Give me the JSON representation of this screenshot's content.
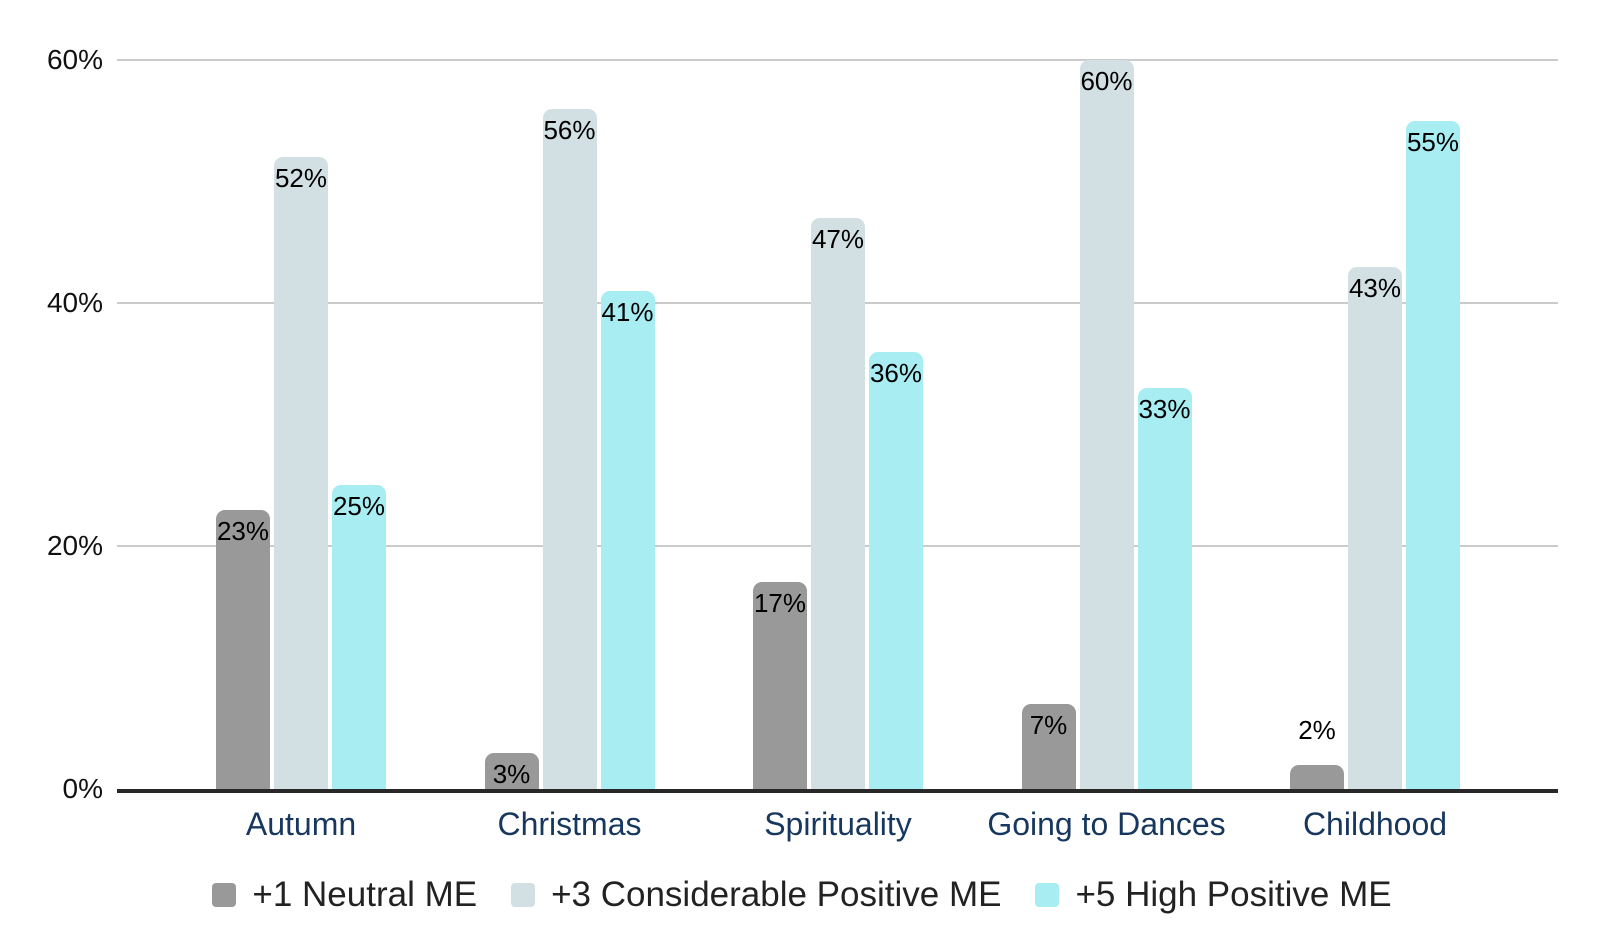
{
  "chart_data": {
    "type": "bar",
    "categories": [
      "Autumn",
      "Christmas",
      "Spirituality",
      "Going to Dances",
      "Childhood"
    ],
    "series": [
      {
        "name": "+1 Neutral ME",
        "color": "#999999",
        "values": [
          23,
          3,
          17,
          7,
          2
        ]
      },
      {
        "name": "+3 Considerable Positive ME",
        "color": "#d3e0e3",
        "values": [
          52,
          56,
          47,
          60,
          43
        ]
      },
      {
        "name": "+5 High Positive ME",
        "color": "#a7edf2",
        "values": [
          25,
          41,
          36,
          33,
          55
        ]
      }
    ],
    "data_labels": [
      [
        "23%",
        "3%",
        "17%",
        "7%",
        "2%"
      ],
      [
        "52%",
        "56%",
        "47%",
        "60%",
        "43%"
      ],
      [
        "25%",
        "41%",
        "36%",
        "33%",
        "55%"
      ]
    ],
    "title": "",
    "xlabel": "",
    "ylabel": "",
    "y_axis": {
      "ticks": [
        "0%",
        "20%",
        "40%",
        "60%"
      ],
      "tick_values": [
        0,
        20,
        40,
        60
      ],
      "max": 60
    },
    "ylim": [
      0,
      60
    ],
    "grid": true,
    "legend_position": "bottom"
  },
  "colors": {
    "background": "#ffffff",
    "grid": "#cbcbcb",
    "axis": "#282828",
    "y_label": "#111111",
    "data_label": "#000000",
    "category_label": "#17375e",
    "legend_text": "#222222"
  }
}
